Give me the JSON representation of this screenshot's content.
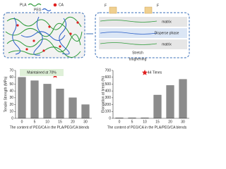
{
  "diagram": {
    "legend": [
      "PLA",
      "PEG",
      "CA"
    ],
    "force": [
      "F",
      "F"
    ],
    "layers": [
      "matrix",
      "Disperse phase",
      "matrix"
    ],
    "caption": [
      "Stretch",
      "toughening"
    ]
  },
  "chart_data": [
    {
      "type": "bar",
      "y_label": "Tensile Strength (MPa)",
      "x_label": "The content of PEG/CA in the PLA/PEG/CA blends",
      "annotation": "Maintained at 70%",
      "categories": [
        "0",
        "5",
        "10",
        "15",
        "20",
        "30"
      ],
      "values": [
        60,
        55,
        50,
        43,
        30,
        20
      ],
      "color": "#8c8c8c",
      "ylim": [
        0,
        70
      ],
      "yticks": [
        0,
        10,
        20,
        30,
        40,
        50,
        60,
        70
      ]
    },
    {
      "type": "bar",
      "y_label": "Elongation at break (%)",
      "x_label": "The content of PEG/CA in the PLA/PEG/CA blends",
      "annotation": "44 Times",
      "categories": [
        "0",
        "5",
        "10",
        "15",
        "20",
        "30"
      ],
      "values": [
        8,
        8,
        8,
        340,
        480,
        570
      ],
      "color": "#8c8c8c",
      "ylim": [
        0,
        700
      ],
      "yticks": [
        0,
        100,
        200,
        300,
        400,
        500,
        600,
        700
      ]
    }
  ]
}
